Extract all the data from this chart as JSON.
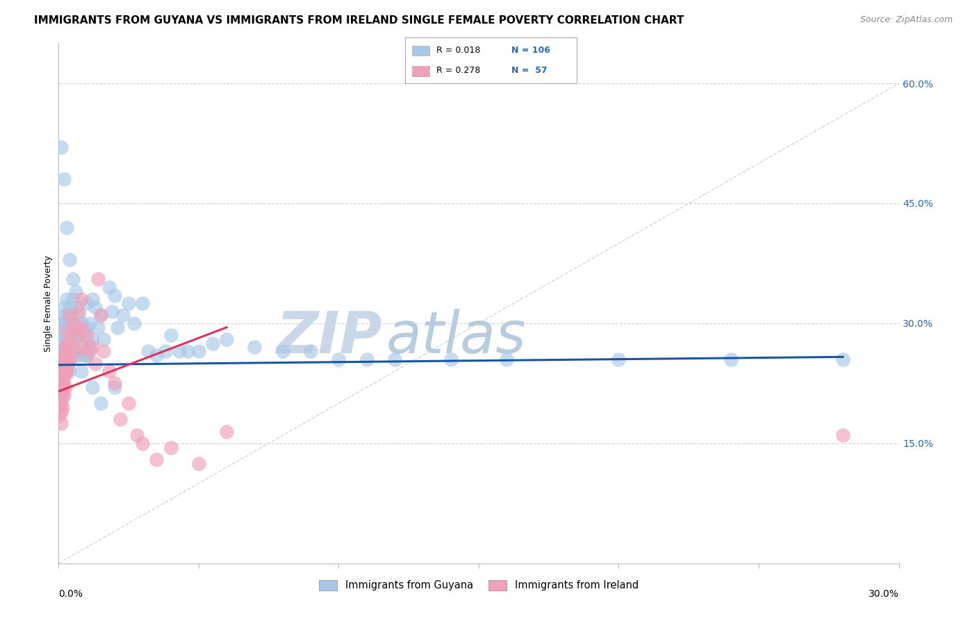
{
  "title": "IMMIGRANTS FROM GUYANA VS IMMIGRANTS FROM IRELAND SINGLE FEMALE POVERTY CORRELATION CHART",
  "source": "Source: ZipAtlas.com",
  "ylabel": "Single Female Poverty",
  "right_yticks": [
    "60.0%",
    "45.0%",
    "30.0%",
    "15.0%"
  ],
  "right_ytick_vals": [
    0.6,
    0.45,
    0.3,
    0.15
  ],
  "xlim": [
    0.0,
    0.3
  ],
  "ylim": [
    0.0,
    0.65
  ],
  "legend_r_guyana": "0.018",
  "legend_n_guyana": "106",
  "legend_r_ireland": "0.278",
  "legend_n_ireland": "57",
  "guyana_color": "#a8c8e8",
  "ireland_color": "#f0a0b8",
  "guyana_line_color": "#1855a0",
  "ireland_line_color": "#e03060",
  "diagonal_color": "#cccccc",
  "watermark_zip": "ZIP",
  "watermark_atlas": "atlas",
  "watermark_color_zip": "#c8d8e8",
  "watermark_color_atlas": "#b8cce0",
  "background_color": "#ffffff",
  "guyana_x": [
    0.0008,
    0.0008,
    0.0008,
    0.0008,
    0.0008,
    0.001,
    0.001,
    0.001,
    0.001,
    0.001,
    0.001,
    0.0015,
    0.0015,
    0.0015,
    0.0015,
    0.0015,
    0.002,
    0.002,
    0.002,
    0.002,
    0.002,
    0.002,
    0.0025,
    0.0025,
    0.0025,
    0.0025,
    0.003,
    0.003,
    0.003,
    0.003,
    0.003,
    0.0035,
    0.0035,
    0.0035,
    0.004,
    0.004,
    0.004,
    0.004,
    0.0045,
    0.0045,
    0.005,
    0.005,
    0.005,
    0.006,
    0.006,
    0.006,
    0.007,
    0.007,
    0.007,
    0.008,
    0.008,
    0.008,
    0.009,
    0.009,
    0.01,
    0.01,
    0.01,
    0.011,
    0.011,
    0.012,
    0.012,
    0.013,
    0.014,
    0.015,
    0.016,
    0.018,
    0.019,
    0.02,
    0.021,
    0.023,
    0.025,
    0.027,
    0.03,
    0.032,
    0.035,
    0.038,
    0.04,
    0.043,
    0.046,
    0.05,
    0.055,
    0.06,
    0.07,
    0.08,
    0.09,
    0.1,
    0.11,
    0.12,
    0.14,
    0.16,
    0.2,
    0.24,
    0.28,
    0.001,
    0.002,
    0.003,
    0.004,
    0.005,
    0.006,
    0.008,
    0.01,
    0.012,
    0.015,
    0.02
  ],
  "guyana_y": [
    0.255,
    0.25,
    0.245,
    0.24,
    0.235,
    0.3,
    0.28,
    0.26,
    0.24,
    0.22,
    0.2,
    0.29,
    0.27,
    0.25,
    0.23,
    0.21,
    0.32,
    0.3,
    0.28,
    0.26,
    0.24,
    0.22,
    0.31,
    0.29,
    0.27,
    0.25,
    0.33,
    0.31,
    0.28,
    0.26,
    0.24,
    0.3,
    0.28,
    0.25,
    0.32,
    0.29,
    0.27,
    0.24,
    0.3,
    0.27,
    0.33,
    0.3,
    0.27,
    0.32,
    0.29,
    0.26,
    0.31,
    0.285,
    0.26,
    0.3,
    0.275,
    0.24,
    0.29,
    0.26,
    0.325,
    0.295,
    0.26,
    0.3,
    0.27,
    0.33,
    0.28,
    0.32,
    0.295,
    0.31,
    0.28,
    0.345,
    0.315,
    0.335,
    0.295,
    0.31,
    0.325,
    0.3,
    0.325,
    0.265,
    0.26,
    0.265,
    0.285,
    0.265,
    0.265,
    0.265,
    0.275,
    0.28,
    0.27,
    0.265,
    0.265,
    0.255,
    0.255,
    0.255,
    0.255,
    0.255,
    0.255,
    0.255,
    0.255,
    0.52,
    0.48,
    0.42,
    0.38,
    0.355,
    0.34,
    0.29,
    0.26,
    0.22,
    0.2,
    0.22
  ],
  "ireland_x": [
    0.0005,
    0.0005,
    0.0005,
    0.0005,
    0.0005,
    0.001,
    0.001,
    0.001,
    0.001,
    0.001,
    0.0015,
    0.0015,
    0.0015,
    0.0015,
    0.002,
    0.002,
    0.002,
    0.002,
    0.0025,
    0.0025,
    0.0025,
    0.003,
    0.003,
    0.003,
    0.0035,
    0.0035,
    0.004,
    0.004,
    0.004,
    0.005,
    0.005,
    0.006,
    0.006,
    0.007,
    0.007,
    0.008,
    0.008,
    0.009,
    0.01,
    0.011,
    0.012,
    0.013,
    0.014,
    0.015,
    0.016,
    0.018,
    0.02,
    0.022,
    0.025,
    0.028,
    0.03,
    0.035,
    0.04,
    0.05,
    0.06,
    0.28
  ],
  "ireland_y": [
    0.245,
    0.23,
    0.215,
    0.2,
    0.185,
    0.235,
    0.22,
    0.205,
    0.19,
    0.175,
    0.255,
    0.235,
    0.215,
    0.195,
    0.27,
    0.25,
    0.23,
    0.21,
    0.26,
    0.24,
    0.22,
    0.29,
    0.265,
    0.24,
    0.275,
    0.25,
    0.31,
    0.28,
    0.255,
    0.3,
    0.27,
    0.295,
    0.265,
    0.315,
    0.285,
    0.33,
    0.295,
    0.27,
    0.285,
    0.265,
    0.27,
    0.25,
    0.355,
    0.31,
    0.265,
    0.24,
    0.225,
    0.18,
    0.2,
    0.16,
    0.15,
    0.13,
    0.145,
    0.125,
    0.165,
    0.16
  ],
  "grid_color": "#d0d0d0",
  "title_fontsize": 11,
  "axis_label_fontsize": 9,
  "tick_fontsize": 10,
  "guyana_line_x0": 0.0,
  "guyana_line_y0": 0.248,
  "guyana_line_x1": 0.28,
  "guyana_line_y1": 0.258,
  "ireland_line_x0": 0.0,
  "ireland_line_y0": 0.215,
  "ireland_line_x1": 0.06,
  "ireland_line_y1": 0.295
}
